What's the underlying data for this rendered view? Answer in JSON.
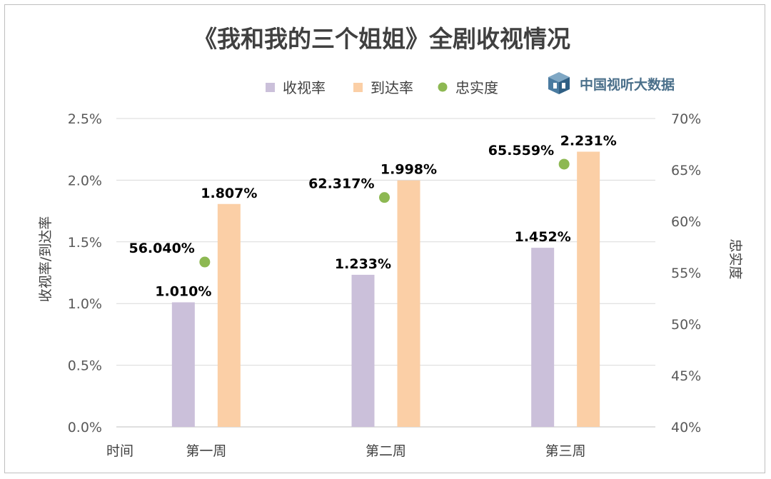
{
  "chart_data": {
    "type": "bar",
    "title": "《我和我的三个姐姐》全剧收视情况",
    "xlabel": "时间",
    "ylabel": "收视率/到达率",
    "y2label": "忠实度",
    "categories": [
      "第一周",
      "第二周",
      "第三周"
    ],
    "ylim": [
      0,
      2.5
    ],
    "y2lim": [
      40,
      70
    ],
    "yticks": [
      "0.0%",
      "0.5%",
      "1.0%",
      "1.5%",
      "2.0%",
      "2.5%"
    ],
    "y2ticks": [
      "40%",
      "45%",
      "50%",
      "55%",
      "60%",
      "65%",
      "70%"
    ],
    "grid": true,
    "legend_position": "top",
    "series": [
      {
        "name": "收视率",
        "type": "bar",
        "axis": "left",
        "color": "#cbc0da",
        "values": [
          1.01,
          1.233,
          1.452
        ],
        "labels": [
          "1.010%",
          "1.233%",
          "1.452%"
        ]
      },
      {
        "name": "到达率",
        "type": "bar",
        "axis": "left",
        "color": "#fbcfa6",
        "values": [
          1.807,
          1.998,
          2.231
        ],
        "labels": [
          "1.807%",
          "1.998%",
          "2.231%"
        ]
      },
      {
        "name": "忠实度",
        "type": "scatter",
        "axis": "right",
        "color": "#8db852",
        "values": [
          56.04,
          62.317,
          65.559
        ],
        "labels": [
          "56.040%",
          "62.317%",
          "65.559%"
        ]
      }
    ]
  },
  "brand": {
    "text": "中国视听大数据",
    "icon": "cube-logo-icon"
  }
}
